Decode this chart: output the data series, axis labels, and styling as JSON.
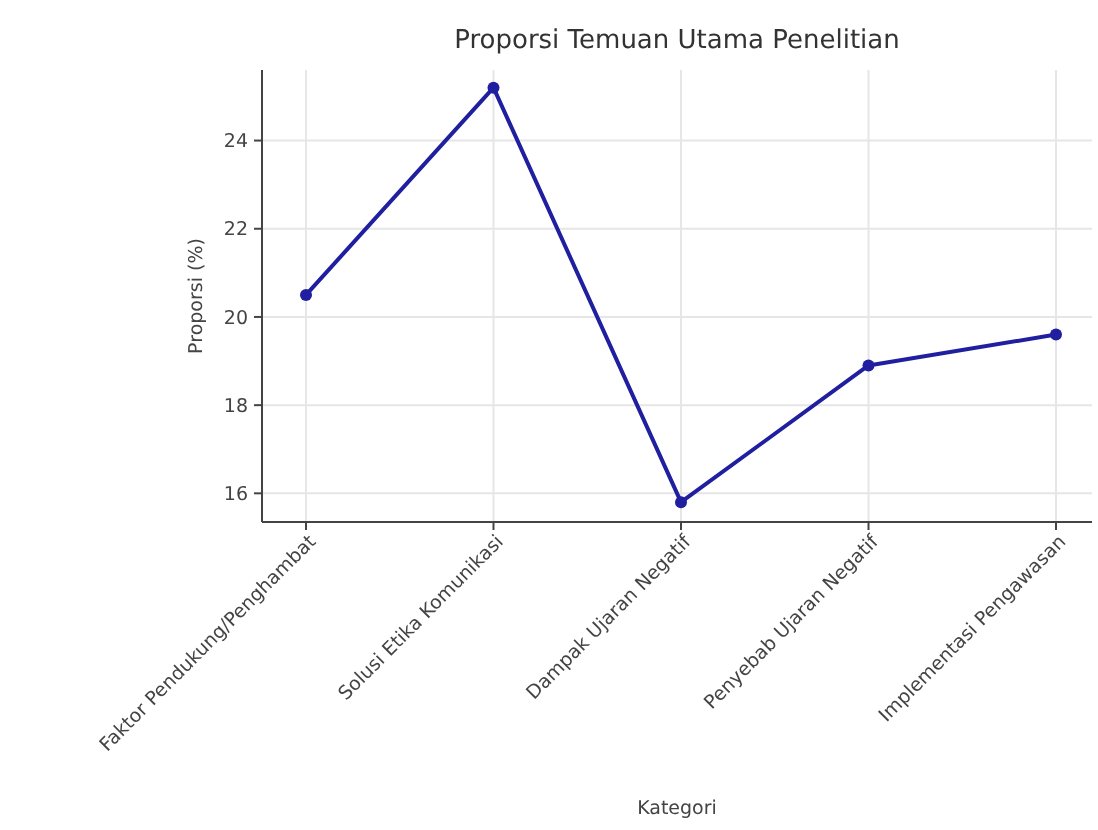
{
  "chart_data": {
    "type": "line",
    "title": "Proporsi Temuan Utama Penelitian",
    "xlabel": "Kategori",
    "ylabel": "Proporsi (%)",
    "categories": [
      "Faktor Pendukung/Penghambat",
      "Solusi Etika Komunikasi",
      "Dampak Ujaran Negatif",
      "Penyebab Ujaran Negatif",
      "Implementasi Pengawasan"
    ],
    "series": [
      {
        "color": "#1f1fa0",
        "values": [
          20.5,
          25.2,
          15.8,
          18.9,
          19.6
        ]
      }
    ],
    "ylim": [
      15.35,
      25.6
    ],
    "yticks": [
      16,
      18,
      20,
      22,
      24
    ],
    "grid": true,
    "marker": "circle",
    "line_style": "solid"
  }
}
